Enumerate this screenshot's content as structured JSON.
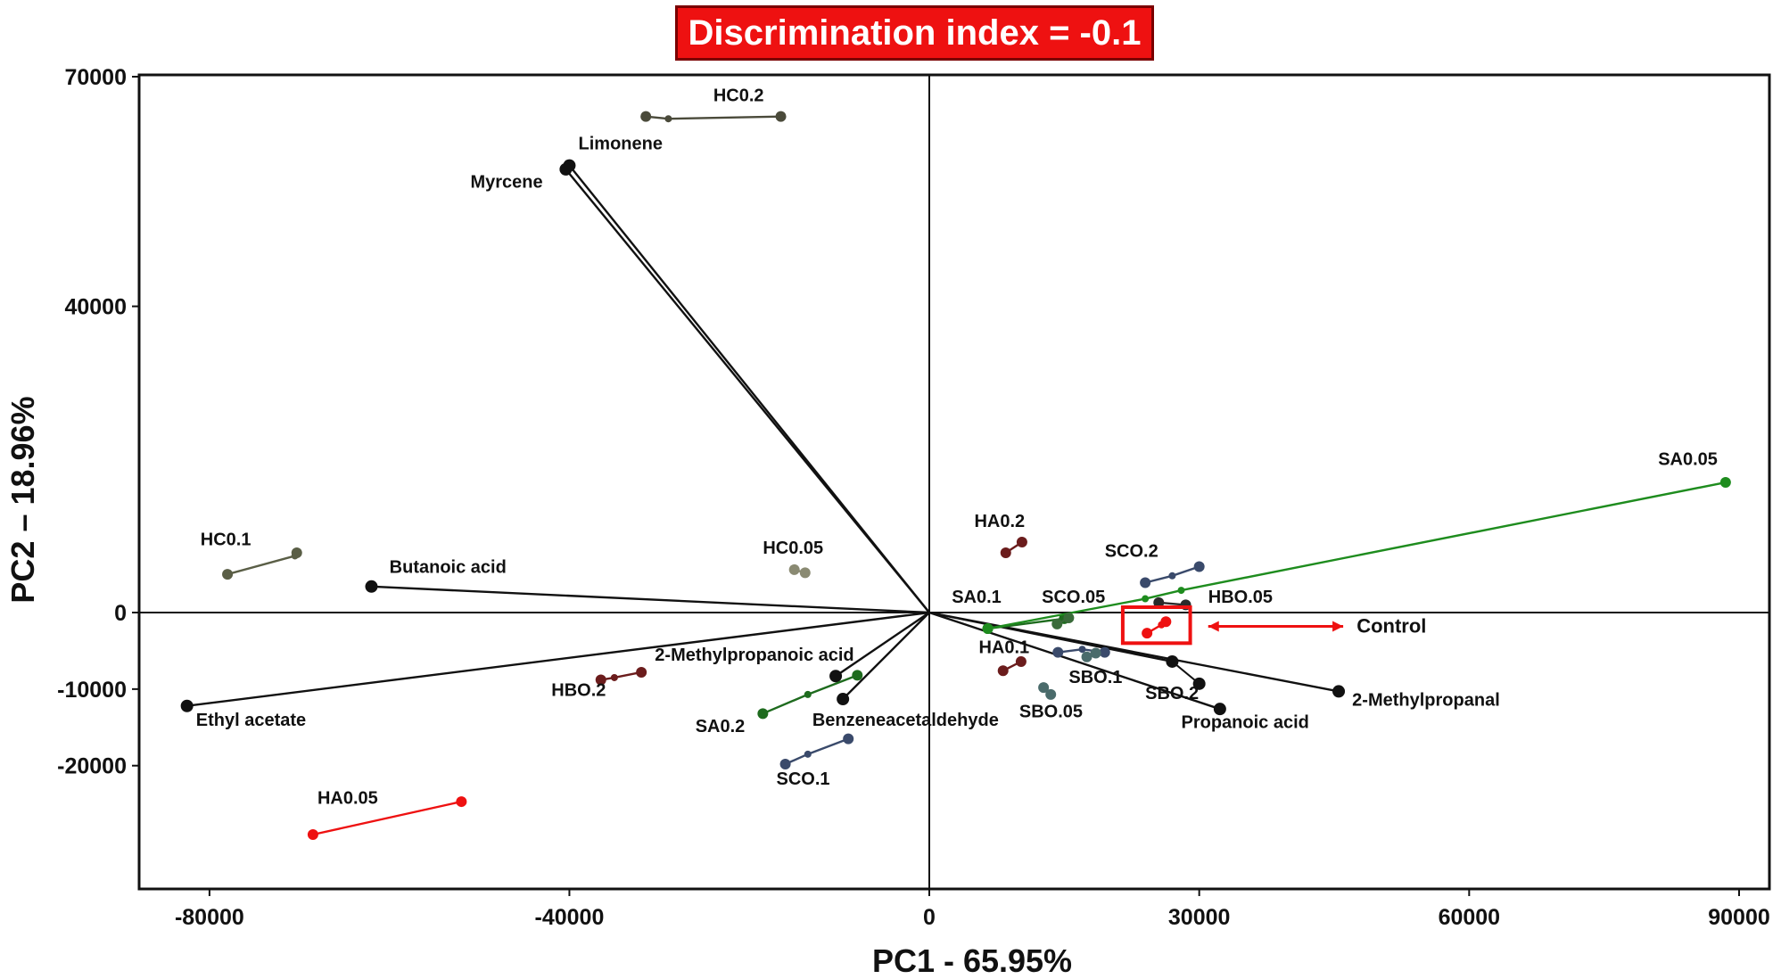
{
  "badge": {
    "text": "Discrimination index = -0.1",
    "color": "#ee1111"
  },
  "chart_data": {
    "type": "scatter",
    "subtype": "PCA biplot",
    "xlabel": "PC1 - 65.95%",
    "ylabel": "PC2 – 18.96%",
    "xlim": [
      -89000,
      95000
    ],
    "ylim": [
      -32000,
      70000
    ],
    "xticks": [
      -80000,
      -40000,
      0,
      30000,
      60000,
      90000
    ],
    "yticks": [
      70000,
      40000,
      0,
      -10000,
      -20000
    ],
    "xtick_labels": [
      "-80000",
      "-40000",
      "0",
      "30000",
      "60000",
      "90000"
    ],
    "ytick_labels": [
      "70000",
      "40000",
      "0",
      "-10000",
      "-20000"
    ],
    "grid": false,
    "loadings": [
      {
        "name": "Limonene",
        "x": -40000,
        "y": 58400
      },
      {
        "name": "Myrcene",
        "x": -40400,
        "y": 57900
      },
      {
        "name": "Butanoic acid",
        "x": -62000,
        "y": 3400
      },
      {
        "name": "Ethyl acetate",
        "x": -82500,
        "y": -12200
      },
      {
        "name": "2-Methylpropanoic acid",
        "x": -10400,
        "y": -8300
      },
      {
        "name": "Benzeneacetaldehyde",
        "x": -9600,
        "y": -11300
      },
      {
        "name": "2-Methylpropanal",
        "x": 45500,
        "y": -10300
      },
      {
        "name": "Propanoic acid",
        "x": 32300,
        "y": -12600
      },
      {
        "name": "SBO.2",
        "x": 27000,
        "y": -6400
      },
      {
        "name": "SBO.2 point",
        "x": 30000,
        "y": -9300
      }
    ],
    "series": [
      {
        "name": "HC0.2",
        "color": "#4a4a3a",
        "points": [
          [
            -31500,
            64800
          ],
          [
            -29000,
            64500
          ],
          [
            -16500,
            64800
          ]
        ]
      },
      {
        "name": "HC0.1",
        "color": "#5a5e46",
        "points": [
          [
            -78000,
            5000
          ],
          [
            -70500,
            7400
          ],
          [
            -70300,
            7800
          ]
        ]
      },
      {
        "name": "HC0.05",
        "color": "#8a8a72",
        "points": [
          [
            -15000,
            5600
          ],
          [
            -13800,
            5200
          ]
        ]
      },
      {
        "name": "HA0.2",
        "color": "#6b1c1c",
        "points": [
          [
            8500,
            7800
          ],
          [
            10300,
            9200
          ]
        ]
      },
      {
        "name": "HA0.1",
        "color": "#6b1c1c",
        "points": [
          [
            8200,
            -7600
          ],
          [
            10200,
            -6400
          ]
        ]
      },
      {
        "name": "HA0.05",
        "color": "#ee1111",
        "points": [
          [
            -68500,
            -29000
          ],
          [
            -52000,
            -24700
          ]
        ]
      },
      {
        "name": "HBO.2",
        "color": "#6b1c1c",
        "points": [
          [
            -36500,
            -8800
          ],
          [
            -35000,
            -8500
          ],
          [
            -32000,
            -7800
          ]
        ]
      },
      {
        "name": "SA0.2",
        "color": "#1e6b1e",
        "points": [
          [
            -18500,
            -13200
          ],
          [
            -13500,
            -10700
          ],
          [
            -8000,
            -8200
          ]
        ]
      },
      {
        "name": "SA0.1",
        "color": "#1e6b1e",
        "points": [
          [
            6500,
            -2100
          ],
          [
            15000,
            -800
          ]
        ]
      },
      {
        "name": "SA0.05",
        "color": "#1e8c1e",
        "points": [
          [
            6500,
            -2100
          ],
          [
            24000,
            1800
          ],
          [
            28000,
            2900
          ],
          [
            88500,
            17000
          ]
        ]
      },
      {
        "name": "SCO.2",
        "color": "#3a4a6b",
        "points": [
          [
            24000,
            3900
          ],
          [
            27000,
            4800
          ],
          [
            30000,
            6000
          ]
        ]
      },
      {
        "name": "SCO.1",
        "color": "#3a4a6b",
        "points": [
          [
            -16000,
            -19800
          ],
          [
            -13500,
            -18500
          ],
          [
            -9000,
            -16500
          ]
        ]
      },
      {
        "name": "SCO.05",
        "color": "#3a6b3a",
        "points": [
          [
            14200,
            -1500
          ],
          [
            15500,
            -700
          ]
        ]
      },
      {
        "name": "HBO.05",
        "color": "#2a2a2a",
        "points": [
          [
            25500,
            1300
          ],
          [
            28500,
            1000
          ]
        ]
      },
      {
        "name": "SBO.1",
        "color": "#3a4a6b",
        "points": [
          [
            14300,
            -5200
          ],
          [
            17000,
            -4800
          ],
          [
            19500,
            -5200
          ]
        ]
      },
      {
        "name": "SBO.05",
        "color": "#4a6b6b",
        "points": [
          [
            12700,
            -9800
          ],
          [
            13500,
            -10700
          ]
        ]
      },
      {
        "name": "SBO.1b",
        "color": "#4a6b6b",
        "points": [
          [
            17500,
            -5800
          ],
          [
            18500,
            -5300
          ]
        ]
      },
      {
        "name": "Control",
        "color": "#ee1111",
        "points": [
          [
            24200,
            -2700
          ],
          [
            25800,
            -1600
          ],
          [
            26300,
            -1200
          ]
        ]
      }
    ],
    "labels": [
      {
        "text": "HC0.2",
        "x": -24000,
        "y": 66800
      },
      {
        "text": "Limonene",
        "x": -39000,
        "y": 60500
      },
      {
        "text": "Myrcene",
        "x": -51000,
        "y": 55500
      },
      {
        "text": "HC0.1",
        "x": -81000,
        "y": 8800
      },
      {
        "text": "Butanoic acid",
        "x": -60000,
        "y": 5200
      },
      {
        "text": "HC0.05",
        "x": -18500,
        "y": 7700
      },
      {
        "text": "HA0.2",
        "x": 5000,
        "y": 11200
      },
      {
        "text": "SA0.05",
        "x": 81000,
        "y": 19300
      },
      {
        "text": "SCO.2",
        "x": 19500,
        "y": 7300
      },
      {
        "text": "SA0.1",
        "x": 2500,
        "y": 1300
      },
      {
        "text": "SCO.05",
        "x": 12500,
        "y": 1300
      },
      {
        "text": "HBO.05",
        "x": 31000,
        "y": 1300
      },
      {
        "text": "Control",
        "x": 47500,
        "y": -2600
      },
      {
        "text": "HA0.1",
        "x": 5500,
        "y": -5300
      },
      {
        "text": "2-Methylpropanoic acid",
        "x": -30500,
        "y": -6300
      },
      {
        "text": "SBO.1",
        "x": 15500,
        "y": -9200
      },
      {
        "text": "HBO.2",
        "x": -42000,
        "y": -10900
      },
      {
        "text": "SBO.2",
        "x": 24000,
        "y": -11300
      },
      {
        "text": "2-Methylpropanal",
        "x": 47000,
        "y": -12200
      },
      {
        "text": "SBO.05",
        "x": 10000,
        "y": -13700
      },
      {
        "text": "SA0.2",
        "x": -26000,
        "y": -15600
      },
      {
        "text": "Benzeneacetaldehyde",
        "x": -13000,
        "y": -14800
      },
      {
        "text": "Ethyl acetate",
        "x": -81500,
        "y": -14800
      },
      {
        "text": "Propanoic acid",
        "x": 28000,
        "y": -15100
      },
      {
        "text": "SCO.1",
        "x": -17000,
        "y": -22500
      },
      {
        "text": "HA0.05",
        "x": -68000,
        "y": -25000
      }
    ],
    "highlight": {
      "label": "Control",
      "color": "#ee1111",
      "box": [
        [
          21500,
          -4000
        ],
        [
          29000,
          700
        ]
      ]
    }
  }
}
